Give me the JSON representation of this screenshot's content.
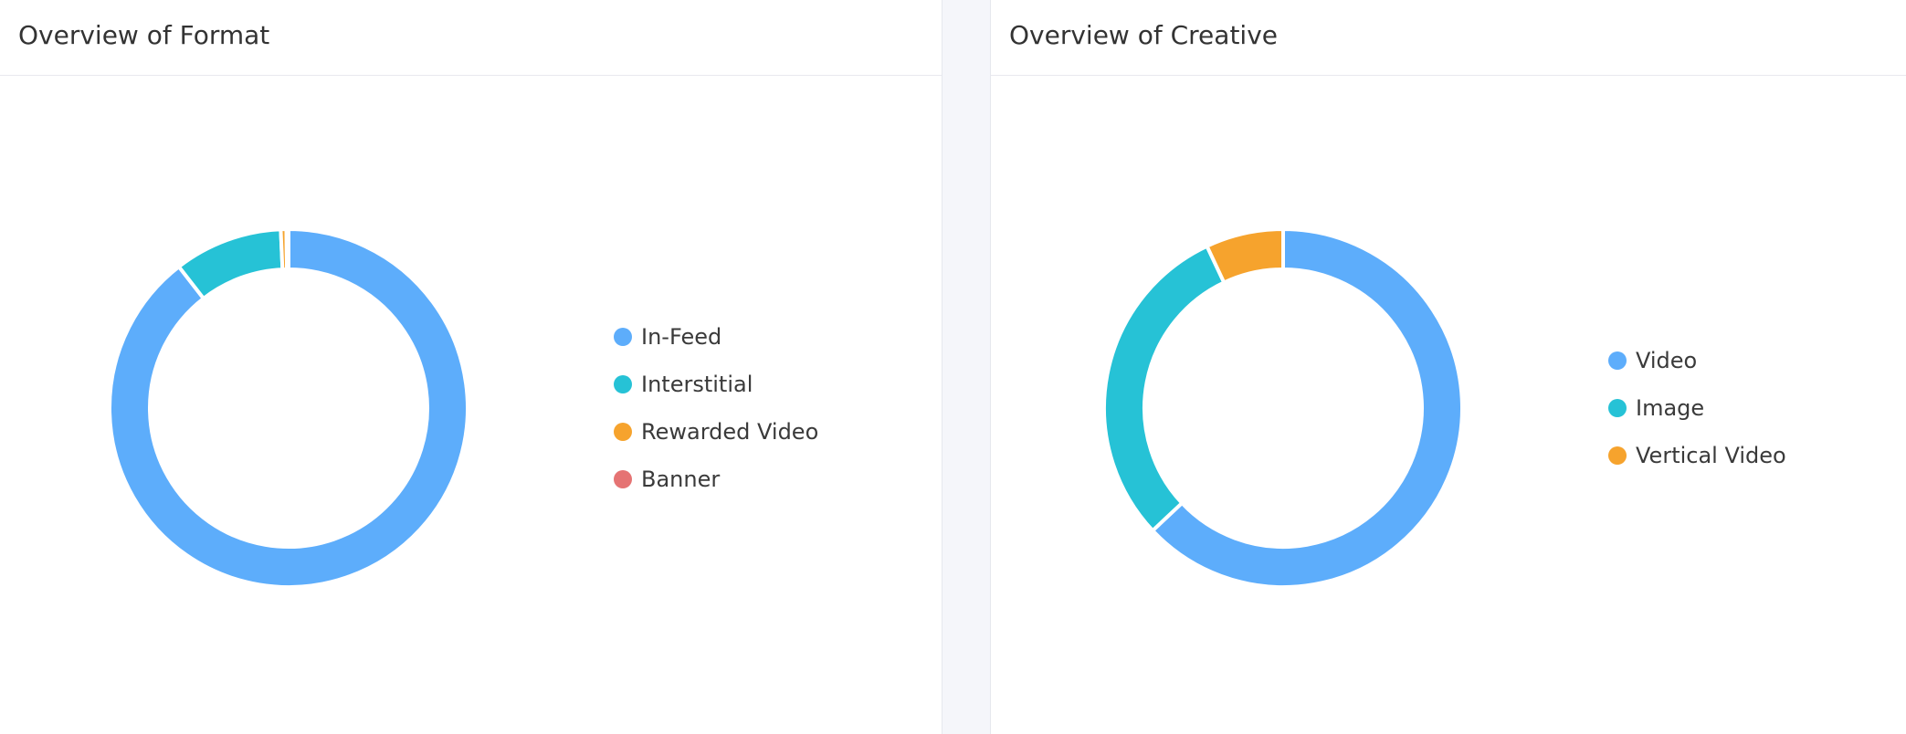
{
  "panels": {
    "format": {
      "title": "Overview of Format"
    },
    "creative": {
      "title": "Overview of Creative"
    }
  },
  "chart_data": [
    {
      "type": "pie",
      "donut": true,
      "title": "Overview of Format",
      "start_angle_deg": 0,
      "legend_position": "right",
      "categories": [
        "In-Feed",
        "Interstitial",
        "Rewarded Video",
        "Banner"
      ],
      "values": [
        89.5,
        9.8,
        0.5,
        0.2
      ],
      "colors": [
        "#5dadfb",
        "#26c2d6",
        "#f6a32d",
        "#e57373"
      ]
    },
    {
      "type": "pie",
      "donut": true,
      "title": "Overview of Creative",
      "start_angle_deg": 0,
      "legend_position": "right",
      "categories": [
        "Video",
        "Image",
        "Vertical Video"
      ],
      "values": [
        63.0,
        30.0,
        7.0
      ],
      "colors": [
        "#5dadfb",
        "#26c2d6",
        "#f6a32d"
      ]
    }
  ]
}
